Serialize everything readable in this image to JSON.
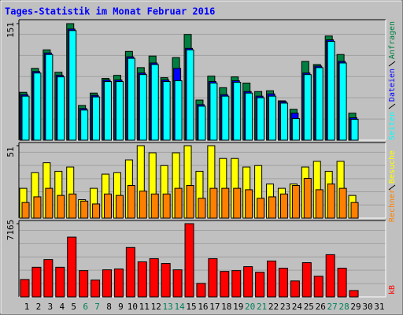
{
  "chart_data": [
    {
      "type": "bar",
      "title": "Tages-Statistik im Monat Februar 2016",
      "ylim": [
        0,
        151
      ],
      "yticks": [
        151
      ],
      "series": [
        {
          "name": "Anfragen",
          "color": "#008040",
          "values": [
            62,
            93,
            117,
            88,
            151,
            45,
            61,
            80,
            84,
            115,
            94,
            109,
            81,
            107,
            137,
            52,
            83,
            68,
            82,
            74,
            63,
            64,
            51,
            40,
            102,
            98,
            135,
            111,
            35,
            null,
            null
          ]
        },
        {
          "name": "Dateien",
          "color": "#0000ff",
          "values": [
            59,
            89,
            113,
            84,
            144,
            41,
            58,
            78,
            78,
            108,
            87,
            100,
            78,
            93,
            119,
            46,
            76,
            59,
            77,
            63,
            57,
            60,
            50,
            35,
            87,
            96,
            130,
            102,
            29,
            null,
            null
          ]
        },
        {
          "name": "Seiten",
          "color": "#00ffff",
          "values": [
            57,
            87,
            111,
            82,
            142,
            39,
            56,
            76,
            76,
            106,
            85,
            98,
            76,
            77,
            117,
            44,
            74,
            57,
            75,
            61,
            55,
            57,
            48,
            28,
            85,
            94,
            128,
            100,
            27,
            null,
            null
          ]
        }
      ]
    },
    {
      "type": "bar",
      "ylim": [
        0,
        51
      ],
      "yticks": [
        51
      ],
      "series": [
        {
          "name": "Besuche",
          "color": "#ffff00",
          "values": [
            21,
            32,
            39,
            33,
            36,
            13,
            21,
            31,
            32,
            41,
            51,
            46,
            37,
            46,
            51,
            33,
            51,
            42,
            42,
            36,
            37,
            24,
            21,
            24,
            36,
            40,
            33,
            40,
            16,
            null,
            null
          ]
        },
        {
          "name": "Rechner",
          "color": "#ff8000",
          "values": [
            11,
            15,
            21,
            16,
            17,
            12,
            10,
            17,
            16,
            23,
            19,
            17,
            17,
            21,
            23,
            14,
            21,
            21,
            21,
            20,
            14,
            15,
            17,
            23,
            28,
            20,
            24,
            21,
            11,
            null,
            null
          ]
        }
      ]
    },
    {
      "type": "bar",
      "ylim": [
        0,
        7165
      ],
      "yticks": [
        7165
      ],
      "categories": [
        "1",
        "2",
        "3",
        "4",
        "5",
        "6",
        "7",
        "8",
        "9",
        "10",
        "11",
        "12",
        "13",
        "14",
        "15",
        "16",
        "17",
        "18",
        "19",
        "20",
        "21",
        "22",
        "23",
        "24",
        "25",
        "26",
        "27",
        "28",
        "29",
        "30",
        "31"
      ],
      "category_colors": [
        "#000000",
        "#000000",
        "#000000",
        "#000000",
        "#000000",
        "#00805c",
        "#00805c",
        "#000000",
        "#000000",
        "#000000",
        "#000000",
        "#000000",
        "#00805c",
        "#00805c",
        "#000000",
        "#000000",
        "#000000",
        "#000000",
        "#000000",
        "#00805c",
        "#00805c",
        "#000000",
        "#000000",
        "#000000",
        "#000000",
        "#000000",
        "#00805c",
        "#00805c",
        "#000000",
        "#000000",
        "#000000"
      ],
      "series": [
        {
          "name": "kB",
          "color": "#ff0000",
          "values": [
            1700,
            2900,
            3650,
            2900,
            5850,
            2570,
            1650,
            2650,
            2730,
            4830,
            3430,
            3740,
            3270,
            2650,
            7165,
            1320,
            3740,
            2490,
            2570,
            2960,
            2410,
            3510,
            2810,
            1560,
            3350,
            2020,
            4130,
            2810,
            620,
            null,
            null
          ]
        }
      ]
    }
  ]
}
